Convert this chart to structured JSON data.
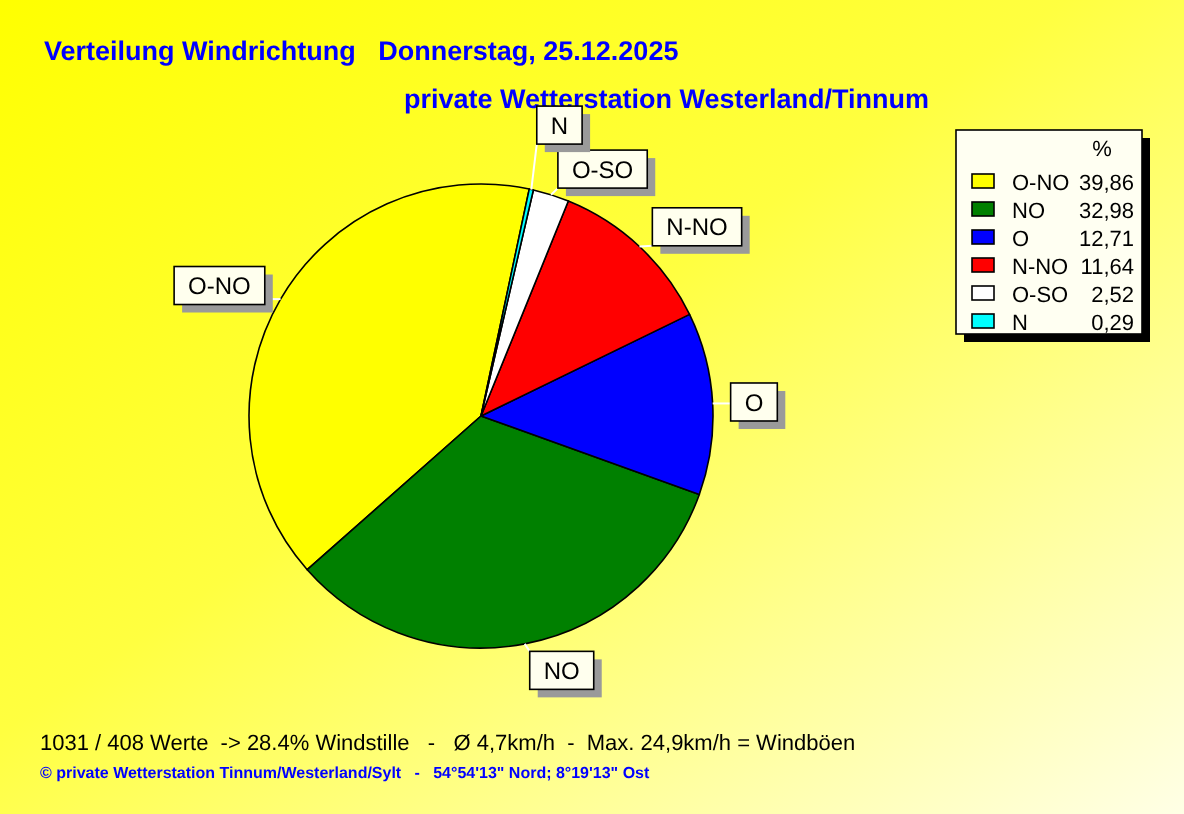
{
  "chart_data": {
    "type": "pie",
    "title": "Verteilung Windrichtung   Donnerstag, 25.12.2025",
    "subtitle": "private Wetterstation Westerland/Tinnum",
    "categories": [
      "O-NO",
      "NO",
      "O",
      "N-NO",
      "O-SO",
      "N"
    ],
    "values": [
      39.86,
      32.98,
      12.71,
      11.64,
      2.52,
      0.29
    ],
    "colors": [
      "#ffff00",
      "#008000",
      "#0000ff",
      "#ff0000",
      "#ffffff",
      "#00ffff"
    ],
    "value_labels": [
      "39,86",
      "32,98",
      "12,71",
      "11,64",
      "2,52",
      "0,29"
    ],
    "legend_title": "%",
    "legend": "top right",
    "annotations": [
      "1031 / 408 Werte  -> 28.4% Windstille   -   Ø 4,7km/h  -  Max. 24,9km/h = Windböen",
      "© private Wetterstation Tinnum/Westerland/Sylt   -   54°54'13\" Nord; 8°19'13\" Ost"
    ]
  }
}
